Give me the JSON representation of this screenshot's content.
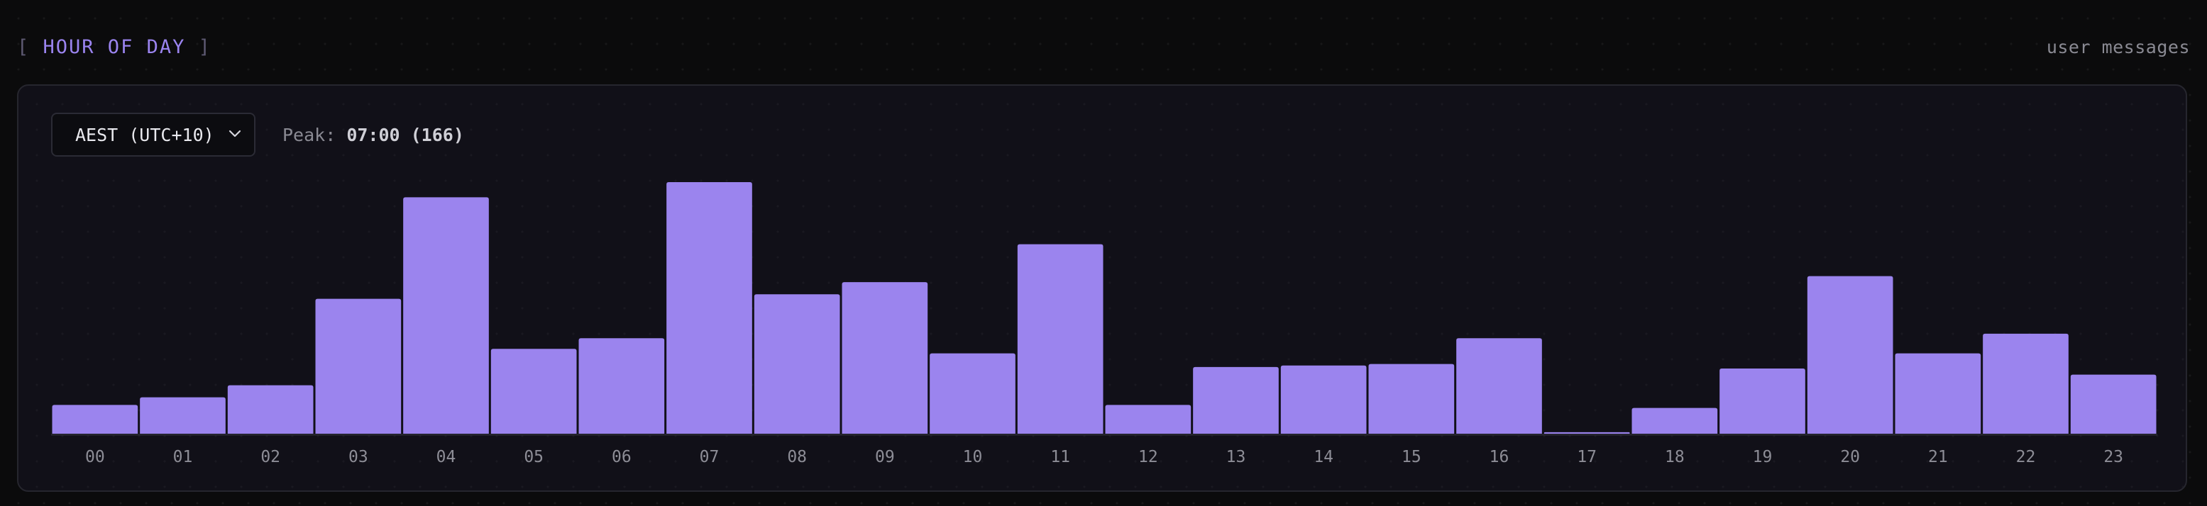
{
  "header": {
    "title": "HOUR OF DAY",
    "bracket_open": "[",
    "bracket_close": "]",
    "subtitle": "user messages"
  },
  "controls": {
    "timezone_selected": "AEST (UTC+10)",
    "peak_label": "Peak:",
    "peak_value": "07:00 (166)"
  },
  "colors": {
    "bar": "#9b84ee",
    "accent": "#9b84f0",
    "tick_text": "#8d8d96"
  },
  "chart_data": {
    "type": "bar",
    "categories": [
      "00",
      "01",
      "02",
      "03",
      "04",
      "05",
      "06",
      "07",
      "08",
      "09",
      "10",
      "11",
      "12",
      "13",
      "14",
      "15",
      "16",
      "17",
      "18",
      "19",
      "20",
      "21",
      "22",
      "23"
    ],
    "values": [
      19,
      24,
      32,
      89,
      156,
      56,
      63,
      166,
      92,
      100,
      53,
      125,
      19,
      44,
      45,
      46,
      63,
      1,
      17,
      43,
      104,
      53,
      66,
      39
    ],
    "ylim": [
      0,
      166
    ],
    "grid": false,
    "legend": "none",
    "xlabel": "",
    "ylabel": ""
  }
}
